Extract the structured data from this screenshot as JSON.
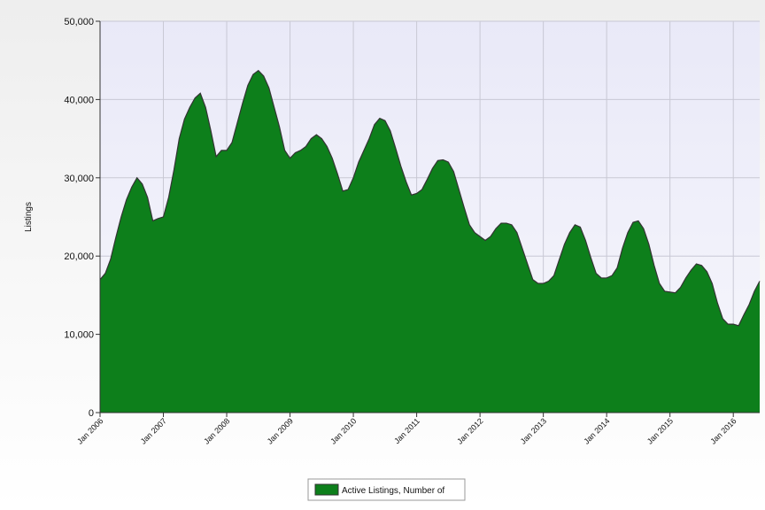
{
  "chart_data": {
    "type": "area",
    "y_label": "Listings",
    "x": [
      "2006-01",
      "2006-02",
      "2006-03",
      "2006-04",
      "2006-05",
      "2006-06",
      "2006-07",
      "2006-08",
      "2006-09",
      "2006-10",
      "2006-11",
      "2006-12",
      "2007-01",
      "2007-02",
      "2007-03",
      "2007-04",
      "2007-05",
      "2007-06",
      "2007-07",
      "2007-08",
      "2007-09",
      "2007-10",
      "2007-11",
      "2007-12",
      "2008-01",
      "2008-02",
      "2008-03",
      "2008-04",
      "2008-05",
      "2008-06",
      "2008-07",
      "2008-08",
      "2008-09",
      "2008-10",
      "2008-11",
      "2008-12",
      "2009-01",
      "2009-02",
      "2009-03",
      "2009-04",
      "2009-05",
      "2009-06",
      "2009-07",
      "2009-08",
      "2009-09",
      "2009-10",
      "2009-11",
      "2009-12",
      "2010-01",
      "2010-02",
      "2010-03",
      "2010-04",
      "2010-05",
      "2010-06",
      "2010-07",
      "2010-08",
      "2010-09",
      "2010-10",
      "2010-11",
      "2010-12",
      "2011-01",
      "2011-02",
      "2011-03",
      "2011-04",
      "2011-05",
      "2011-06",
      "2011-07",
      "2011-08",
      "2011-09",
      "2011-10",
      "2011-11",
      "2011-12",
      "2012-01",
      "2012-02",
      "2012-03",
      "2012-04",
      "2012-05",
      "2012-06",
      "2012-07",
      "2012-08",
      "2012-09",
      "2012-10",
      "2012-11",
      "2012-12",
      "2013-01",
      "2013-02",
      "2013-03",
      "2013-04",
      "2013-05",
      "2013-06",
      "2013-07",
      "2013-08",
      "2013-09",
      "2013-10",
      "2013-11",
      "2013-12",
      "2014-01",
      "2014-02",
      "2014-03",
      "2014-04",
      "2014-05",
      "2014-06",
      "2014-07",
      "2014-08",
      "2014-09",
      "2014-10",
      "2014-11",
      "2014-12",
      "2015-01",
      "2015-02",
      "2015-03",
      "2015-04",
      "2015-05",
      "2015-06",
      "2015-07",
      "2015-08",
      "2015-09",
      "2015-10",
      "2015-11",
      "2015-12",
      "2016-01",
      "2016-02",
      "2016-03",
      "2016-04",
      "2016-05",
      "2016-06"
    ],
    "series": [
      {
        "name": "Active Listings, Number of",
        "color": "#0d7f1b",
        "values": [
          17000,
          17800,
          19600,
          22400,
          25000,
          27200,
          28800,
          30000,
          29200,
          27500,
          24500,
          24800,
          25000,
          27500,
          31000,
          35000,
          37500,
          39000,
          40200,
          40800,
          39000,
          36000,
          32700,
          33500,
          33500,
          34500,
          37000,
          39500,
          41800,
          43200,
          43700,
          43000,
          41500,
          39000,
          36500,
          33500,
          32500,
          33200,
          33500,
          34000,
          35000,
          35500,
          35000,
          34000,
          32500,
          30500,
          28300,
          28500,
          30000,
          32000,
          33500,
          35000,
          36800,
          37600,
          37300,
          36000,
          33800,
          31500,
          29500,
          27800,
          28000,
          28500,
          29800,
          31200,
          32200,
          32300,
          32000,
          30800,
          28500,
          26200,
          24000,
          23000,
          22500,
          22000,
          22500,
          23500,
          24200,
          24200,
          24000,
          23000,
          21000,
          19000,
          17000,
          16500,
          16500,
          16800,
          17500,
          19500,
          21500,
          23000,
          24000,
          23700,
          22000,
          19800,
          17800,
          17200,
          17200,
          17500,
          18500,
          21000,
          23000,
          24300,
          24500,
          23500,
          21500,
          18800,
          16500,
          15500,
          15400,
          15300,
          16000,
          17200,
          18200,
          19000,
          18800,
          18000,
          16500,
          14000,
          12000,
          11300,
          11300,
          11100,
          12500,
          13800,
          15500,
          16800
        ]
      }
    ],
    "xlim": [
      "2006-01",
      "2016-06"
    ],
    "xticks": [
      {
        "value": "2006-01",
        "label": "Jan 2006"
      },
      {
        "value": "2007-01",
        "label": "Jan 2007"
      },
      {
        "value": "2008-01",
        "label": "Jan 2008"
      },
      {
        "value": "2009-01",
        "label": "Jan 2009"
      },
      {
        "value": "2010-01",
        "label": "Jan 2010"
      },
      {
        "value": "2011-01",
        "label": "Jan 2011"
      },
      {
        "value": "2012-01",
        "label": "Jan 2012"
      },
      {
        "value": "2013-01",
        "label": "Jan 2013"
      },
      {
        "value": "2014-01",
        "label": "Jan 2014"
      },
      {
        "value": "2015-01",
        "label": "Jan 2015"
      },
      {
        "value": "2016-01",
        "label": "Jan 2016"
      }
    ],
    "ylim": [
      0,
      50000
    ],
    "yticks": [
      0,
      {
        "value": 10000,
        "label": "10,000"
      },
      {
        "value": 20000,
        "label": "20,000"
      },
      {
        "value": 30000,
        "label": "30,000"
      },
      {
        "value": 40000,
        "label": "40,000"
      },
      {
        "value": 50000,
        "label": "50,000"
      }
    ],
    "grid": true
  }
}
